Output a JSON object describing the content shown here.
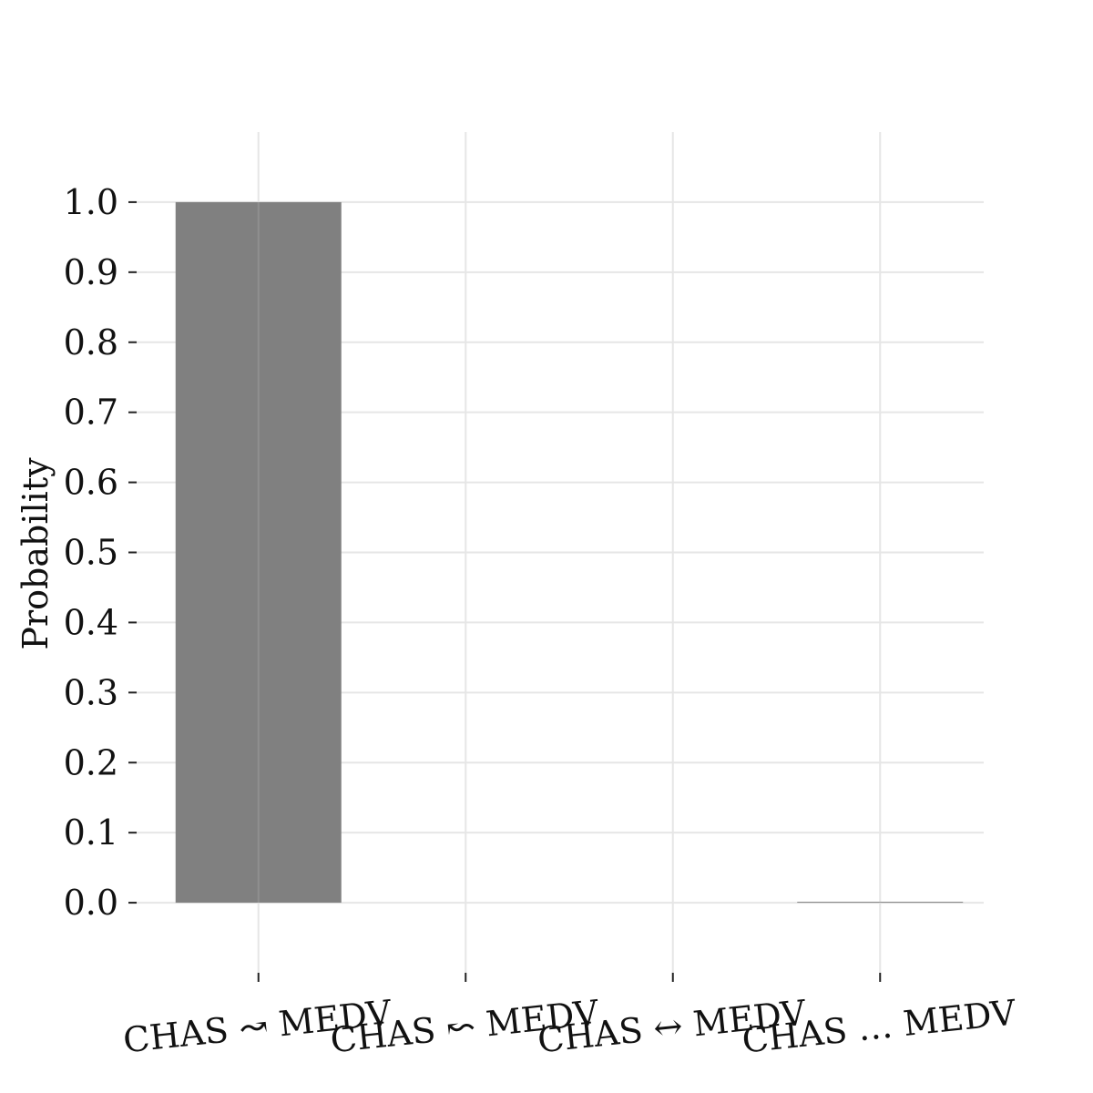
{
  "chart_data": {
    "type": "bar",
    "categories": [
      "CHAS ↝ MEDV",
      "CHAS ↜ MEDV",
      "CHAS ↔ MEDV",
      "CHAS … MEDV"
    ],
    "values": [
      1.0,
      0.0,
      0.0,
      0.001
    ],
    "ylabel": "Probability",
    "xlabel": "",
    "ylim": [
      -0.1,
      1.1
    ],
    "yticks": [
      "0.0",
      "0.1",
      "0.2",
      "0.3",
      "0.4",
      "0.5",
      "0.6",
      "0.7",
      "0.8",
      "0.9",
      "1.0"
    ],
    "grid": true,
    "bar_color": "#808080"
  }
}
